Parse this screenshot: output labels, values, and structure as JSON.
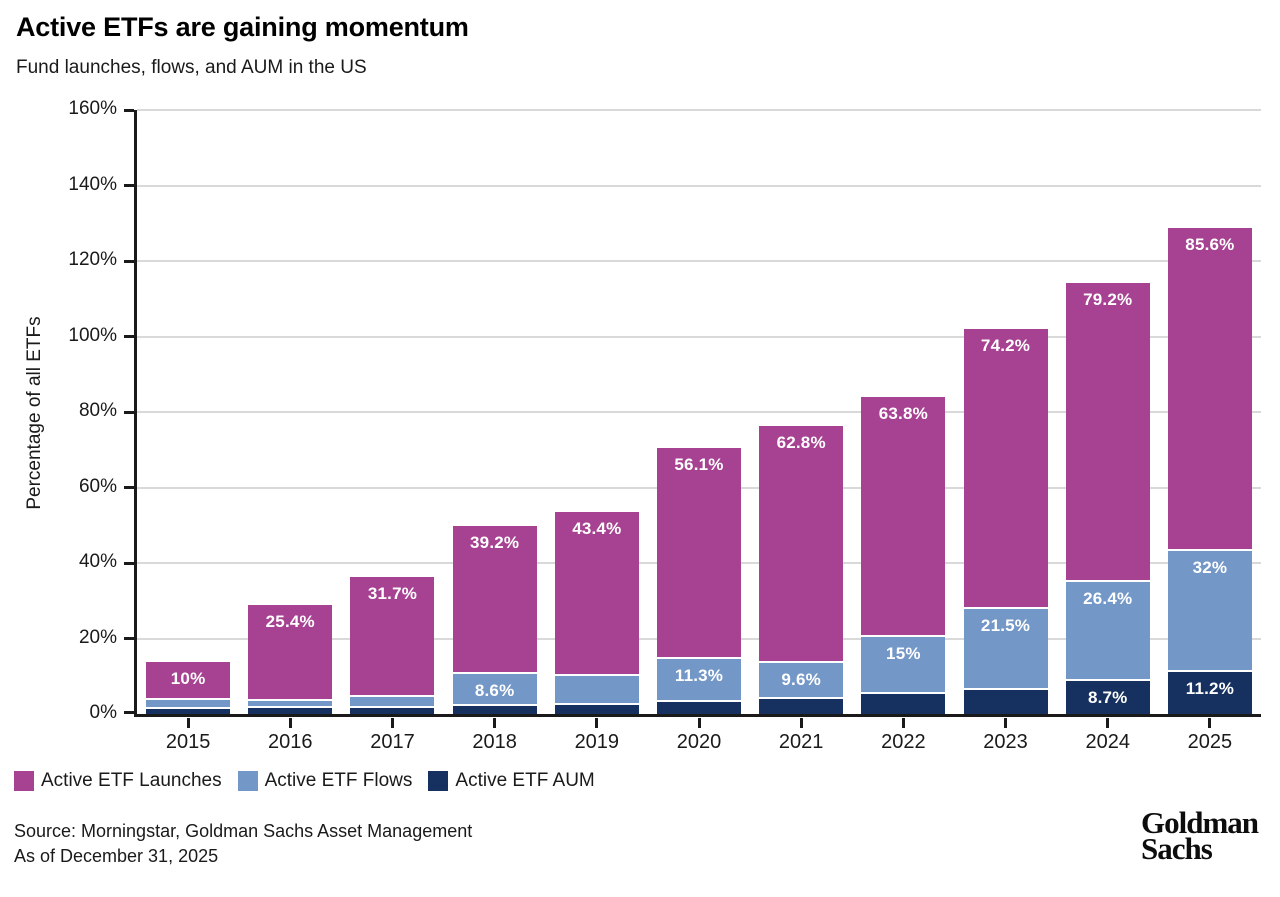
{
  "header": {
    "title": "Active ETFs are gaining momentum",
    "subtitle": "Fund launches, flows, and AUM in the US"
  },
  "chart_data": {
    "type": "bar",
    "stacked": true,
    "title": "Active ETFs are gaining momentum",
    "subtitle": "Fund launches, flows, and AUM in the US",
    "ylabel": "Percentage of all ETFs",
    "xlabel": "",
    "ylim": [
      0,
      160
    ],
    "grid": true,
    "legend_position": "bottom-left",
    "yticks": [
      {
        "value": 0,
        "label": "0%"
      },
      {
        "value": 20,
        "label": "20%"
      },
      {
        "value": 40,
        "label": "40%"
      },
      {
        "value": 60,
        "label": "60%"
      },
      {
        "value": 80,
        "label": "80%"
      },
      {
        "value": 100,
        "label": "100%"
      },
      {
        "value": 120,
        "label": "120%"
      },
      {
        "value": 140,
        "label": "140%"
      },
      {
        "value": 160,
        "label": "160%"
      }
    ],
    "categories": [
      "2015",
      "2016",
      "2017",
      "2018",
      "2019",
      "2020",
      "2021",
      "2022",
      "2023",
      "2024",
      "2025"
    ],
    "series": [
      {
        "name": "Active ETF AUM",
        "color": "#16305F",
        "values": [
          1.3,
          1.5,
          1.6,
          2.1,
          2.5,
          3.2,
          4.0,
          5.3,
          6.4,
          8.7,
          11.2
        ],
        "labels": [
          null,
          null,
          null,
          null,
          null,
          null,
          null,
          null,
          null,
          "8.7%",
          "11.2%"
        ]
      },
      {
        "name": "Active ETF Flows",
        "color": "#7397C7",
        "values": [
          2.5,
          2.0,
          3.0,
          8.6,
          7.7,
          11.3,
          9.6,
          15,
          21.5,
          26.4,
          32
        ],
        "labels": [
          null,
          null,
          null,
          "8.6%",
          null,
          "11.3%",
          "9.6%",
          "15%",
          "21.5%",
          "26.4%",
          "32%"
        ]
      },
      {
        "name": "Active ETF Launches",
        "color": "#A64291",
        "values": [
          10,
          25.4,
          31.7,
          39.2,
          43.4,
          56.1,
          62.8,
          63.8,
          74.2,
          79.2,
          85.6
        ],
        "labels": [
          "10%",
          "25.4%",
          "31.7%",
          "39.2%",
          "43.4%",
          "56.1%",
          "62.8%",
          "63.8%",
          "74.2%",
          "79.2%",
          "85.6%"
        ]
      }
    ]
  },
  "legend": {
    "items": [
      {
        "label": "Active ETF Launches",
        "color": "#A64291"
      },
      {
        "label": "Active ETF Flows",
        "color": "#7397C7"
      },
      {
        "label": "Active ETF AUM",
        "color": "#16305F"
      }
    ]
  },
  "footer": {
    "source": "Source: Morningstar, Goldman Sachs Asset Management",
    "as_of": "As of December 31, 2025",
    "logo": {
      "line1": "Goldman",
      "line2": "Sachs"
    }
  }
}
